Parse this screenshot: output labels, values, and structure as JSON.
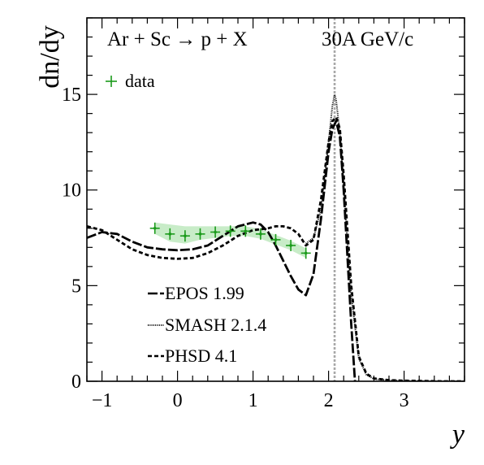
{
  "chart_data": {
    "type": "line",
    "title": "Ar + Sc → p + X",
    "annotation": "30A GeV/c",
    "xlabel": "y",
    "ylabel": "dn/dy",
    "xlim": [
      -1.2,
      3.8
    ],
    "ylim": [
      0,
      19
    ],
    "x_ticks": [
      -1,
      0,
      1,
      2,
      3
    ],
    "y_ticks": [
      0,
      5,
      10,
      15
    ],
    "grid": false,
    "legend_position": "bottom-left",
    "data_legend_position": "top-left",
    "midrapidity_line": 2.08,
    "colors": {
      "data": "#1a9a1a",
      "band": "#c8ecc8",
      "model": "#000000",
      "refline": "#a8a8a8"
    },
    "data": {
      "name": "data",
      "points": [
        {
          "x": -0.3,
          "y": 8.0,
          "band_low": 7.7,
          "band_high": 8.3
        },
        {
          "x": -0.1,
          "y": 7.7,
          "band_low": 7.3,
          "band_high": 8.2
        },
        {
          "x": 0.1,
          "y": 7.6,
          "band_low": 7.2,
          "band_high": 8.1
        },
        {
          "x": 0.3,
          "y": 7.7,
          "band_low": 7.4,
          "band_high": 8.1
        },
        {
          "x": 0.5,
          "y": 7.8,
          "band_low": 7.5,
          "band_high": 8.1
        },
        {
          "x": 0.7,
          "y": 7.85,
          "band_low": 7.6,
          "band_high": 8.1
        },
        {
          "x": 0.9,
          "y": 7.85,
          "band_low": 7.6,
          "band_high": 8.1
        },
        {
          "x": 1.1,
          "y": 7.7,
          "band_low": 7.45,
          "band_high": 7.95
        },
        {
          "x": 1.3,
          "y": 7.4,
          "band_low": 7.15,
          "band_high": 7.65
        },
        {
          "x": 1.5,
          "y": 7.1,
          "band_low": 6.85,
          "band_high": 7.35
        },
        {
          "x": 1.7,
          "y": 6.7,
          "band_low": 6.45,
          "band_high": 6.95
        }
      ]
    },
    "series": [
      {
        "name": "EPOS 1.99",
        "dash": "long",
        "x": [
          -1.2,
          -1.0,
          -0.8,
          -0.6,
          -0.4,
          -0.2,
          0.0,
          0.2,
          0.4,
          0.6,
          0.8,
          1.0,
          1.1,
          1.2,
          1.3,
          1.4,
          1.5,
          1.6,
          1.7,
          1.8,
          1.9,
          2.0,
          2.05,
          2.1,
          2.15,
          2.2,
          2.3,
          2.35
        ],
        "y": [
          7.5,
          7.8,
          7.7,
          7.3,
          7.0,
          6.9,
          6.85,
          6.9,
          7.1,
          7.6,
          8.1,
          8.3,
          8.2,
          7.8,
          7.1,
          6.3,
          5.5,
          4.8,
          4.5,
          5.6,
          8.5,
          12.0,
          13.2,
          13.6,
          12.8,
          10.0,
          3.0,
          0.0
        ]
      },
      {
        "name": "SMASH 2.1.4",
        "dash": "dotted",
        "x": [
          1.7,
          1.8,
          1.9,
          2.0,
          2.05,
          2.08,
          2.1,
          2.15,
          2.2,
          2.3,
          2.4,
          2.5,
          2.6,
          2.8,
          3.0,
          3.5,
          3.8
        ],
        "y": [
          7.2,
          7.5,
          9.0,
          12.5,
          14.4,
          15.0,
          14.7,
          13.0,
          10.0,
          4.5,
          1.2,
          0.35,
          0.12,
          0.05,
          0.02,
          0.0,
          0.0
        ]
      },
      {
        "name": "PHSD 4.1",
        "dash": "dashed",
        "x": [
          -1.2,
          -1.0,
          -0.8,
          -0.6,
          -0.4,
          -0.2,
          0.0,
          0.2,
          0.4,
          0.6,
          0.8,
          1.0,
          1.2,
          1.3,
          1.4,
          1.5,
          1.6,
          1.7,
          1.8,
          1.9,
          2.0,
          2.05,
          2.1,
          2.15,
          2.2,
          2.3,
          2.4,
          2.5,
          2.6,
          2.8,
          3.0,
          3.5,
          3.8
        ],
        "y": [
          8.1,
          7.9,
          7.4,
          6.9,
          6.6,
          6.45,
          6.4,
          6.45,
          6.7,
          7.1,
          7.6,
          7.9,
          8.0,
          8.1,
          8.1,
          8.0,
          7.7,
          7.1,
          7.4,
          9.5,
          12.5,
          13.6,
          13.8,
          13.2,
          10.8,
          5.0,
          1.3,
          0.4,
          0.15,
          0.06,
          0.03,
          0.0,
          0.0
        ]
      }
    ]
  }
}
